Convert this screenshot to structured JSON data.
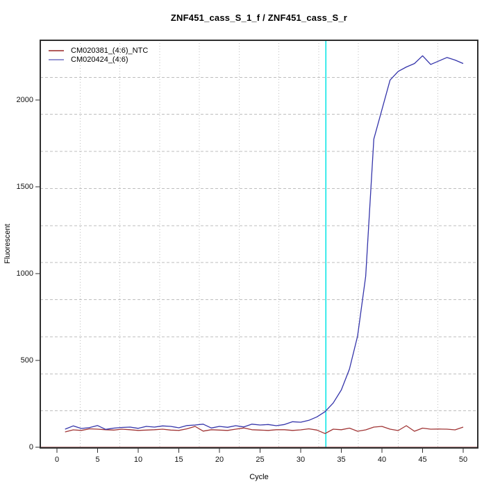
{
  "chart_data": {
    "type": "line",
    "title": "ZNF451_cass_S_1_f / ZNF451_cass_S_r",
    "xlabel": "Cycle",
    "ylabel": "Fluorescent",
    "x_ticks": [
      0,
      5,
      10,
      15,
      20,
      25,
      30,
      35,
      40,
      45,
      50
    ],
    "y_ticks": [
      0,
      500,
      1000,
      1500,
      2000
    ],
    "xlim": [
      -2,
      51.8
    ],
    "ylim": [
      0,
      2348
    ],
    "grid": {
      "style": "11x11 divisions",
      "vertical": "dotted",
      "horizontal": "dashed",
      "color": "#bdbdbd"
    },
    "threshold_cycle": 33.1,
    "threshold_line_color": "#00e5e5",
    "zero_line_value": 0,
    "zero_line_color": "#8b2828",
    "x": [
      1,
      2,
      3,
      4,
      5,
      6,
      7,
      8,
      9,
      10,
      11,
      12,
      13,
      14,
      15,
      16,
      17,
      18,
      19,
      20,
      21,
      22,
      23,
      24,
      25,
      26,
      27,
      28,
      29,
      30,
      31,
      32,
      33,
      34,
      35,
      36,
      37,
      38,
      39,
      40,
      41,
      42,
      43,
      44,
      45,
      46,
      47,
      48,
      49,
      50
    ],
    "series": [
      {
        "name": "CM020381_(4:6)_NTC",
        "color": "#a03434",
        "legend_color": "#b25b5b",
        "values": [
          88,
          100,
          97,
          106,
          104,
          101,
          99,
          104,
          101,
          97,
          99,
          101,
          104,
          99,
          97,
          106,
          120,
          93,
          101,
          99,
          97,
          104,
          111,
          101,
          99,
          97,
          101,
          101,
          97,
          100,
          106,
          99,
          79,
          104,
          101,
          110,
          92,
          100,
          116,
          120,
          104,
          96,
          124,
          92,
          110,
          104,
          105,
          104,
          100,
          116
        ]
      },
      {
        "name": "CM020424_(4:6)",
        "color": "#3434aa",
        "legend_color": "#9494d2",
        "values": [
          104,
          123,
          108,
          113,
          125,
          103,
          110,
          114,
          116,
          109,
          120,
          116,
          123,
          120,
          112,
          125,
          128,
          133,
          111,
          120,
          115,
          124,
          117,
          133,
          128,
          131,
          124,
          131,
          147,
          144,
          155,
          175,
          205,
          255,
          330,
          450,
          640,
          985,
          1775,
          1945,
          2115,
          2165,
          2190,
          2210,
          2255,
          2205,
          2225,
          2245,
          2230,
          2210
        ]
      }
    ]
  }
}
